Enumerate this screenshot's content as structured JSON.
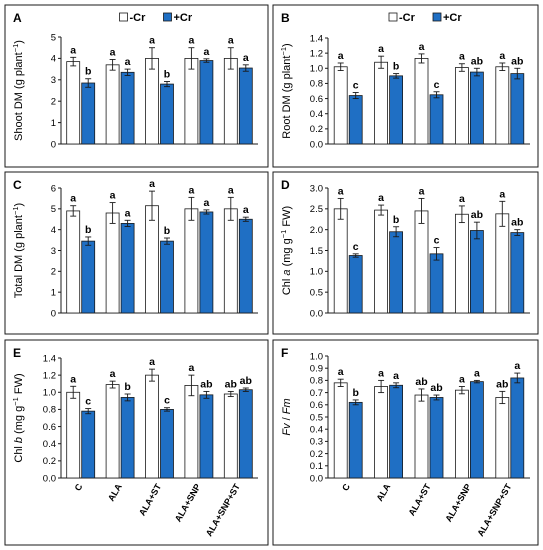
{
  "legend": {
    "series_labels": [
      "-Cr",
      "+Cr"
    ]
  },
  "colors": {
    "control": "#ffffff",
    "treated": "#1f6fc4",
    "frame": "#1a1a1a"
  },
  "chart_data": [
    {
      "id": "A",
      "type": "bar",
      "letter": "A",
      "ylabel_main": "Shoot DM (g plant",
      "ylabel_sup": "−1",
      "ylabel_end": ")",
      "ylim": [
        0,
        5
      ],
      "yticks": [
        "0",
        "1",
        "2",
        "3",
        "4",
        "5"
      ],
      "categories": [
        "C",
        "ALA",
        "ALA+ST",
        "ALA+SNP",
        "ALA+SNP+ST"
      ],
      "show_xlabels": false,
      "show_legend": true,
      "series": [
        {
          "name": "-Cr",
          "values": [
            3.85,
            3.7,
            4.0,
            4.0,
            4.0
          ],
          "errors": [
            0.2,
            0.25,
            0.5,
            0.5,
            0.5
          ],
          "letters": [
            "a",
            "a",
            "a",
            "a",
            "a"
          ]
        },
        {
          "name": "+Cr",
          "values": [
            2.85,
            3.35,
            2.8,
            3.9,
            3.55
          ],
          "errors": [
            0.2,
            0.15,
            0.12,
            0.08,
            0.15
          ],
          "letters": [
            "b",
            "a",
            "b",
            "a",
            "a"
          ]
        }
      ]
    },
    {
      "id": "B",
      "type": "bar",
      "letter": "B",
      "ylabel_main": "Root DM (g plant",
      "ylabel_sup": "−1",
      "ylabel_end": ")",
      "ylim": [
        0,
        1.4
      ],
      "yticks": [
        "0.0",
        "0.2",
        "0.4",
        "0.6",
        "0.8",
        "1.0",
        "1.2",
        "1.4"
      ],
      "categories": [
        "C",
        "ALA",
        "ALA+ST",
        "ALA+SNP",
        "ALA+SNP+ST"
      ],
      "show_xlabels": false,
      "show_legend": true,
      "series": [
        {
          "name": "-Cr",
          "values": [
            1.02,
            1.08,
            1.13,
            1.01,
            1.02
          ],
          "errors": [
            0.05,
            0.08,
            0.06,
            0.05,
            0.05
          ],
          "letters": [
            "a",
            "a",
            "a",
            "a",
            "a"
          ]
        },
        {
          "name": "+Cr",
          "values": [
            0.64,
            0.9,
            0.65,
            0.95,
            0.93
          ],
          "errors": [
            0.04,
            0.03,
            0.04,
            0.05,
            0.07
          ],
          "letters": [
            "c",
            "b",
            "c",
            "ab",
            "ab"
          ]
        }
      ]
    },
    {
      "id": "C",
      "type": "bar",
      "letter": "C",
      "ylabel_main": "Total DM (g plant",
      "ylabel_sup": "−1",
      "ylabel_end": ")",
      "ylim": [
        0,
        6
      ],
      "yticks": [
        "0",
        "1",
        "2",
        "3",
        "4",
        "5",
        "6"
      ],
      "categories": [
        "C",
        "ALA",
        "ALA+ST",
        "ALA+SNP",
        "ALA+SNP+ST"
      ],
      "show_xlabels": false,
      "show_legend": false,
      "series": [
        {
          "name": "-Cr",
          "values": [
            4.9,
            4.8,
            5.15,
            5.0,
            5.0
          ],
          "errors": [
            0.25,
            0.5,
            0.7,
            0.55,
            0.55
          ],
          "letters": [
            "a",
            "a",
            "a",
            "a",
            "a"
          ]
        },
        {
          "name": "+Cr",
          "values": [
            3.45,
            4.3,
            3.45,
            4.85,
            4.5
          ],
          "errors": [
            0.2,
            0.15,
            0.15,
            0.1,
            0.1
          ],
          "letters": [
            "b",
            "a",
            "b",
            "a",
            "a"
          ]
        }
      ]
    },
    {
      "id": "D",
      "type": "bar",
      "letter": "D",
      "ylabel_main": "Chl ",
      "ylabel_italic": "a",
      "ylabel_rest": " (mg g",
      "ylabel_sup": "−1",
      "ylabel_end": " FW)",
      "ylim": [
        0,
        3.0
      ],
      "yticks": [
        "0.0",
        "0.5",
        "1.0",
        "1.5",
        "2.0",
        "2.5",
        "3.0"
      ],
      "categories": [
        "C",
        "ALA",
        "ALA+ST",
        "ALA+SNP",
        "ALA+SNP+ST"
      ],
      "show_xlabels": false,
      "show_legend": false,
      "series": [
        {
          "name": "-Cr",
          "values": [
            2.5,
            2.47,
            2.45,
            2.37,
            2.38
          ],
          "errors": [
            0.25,
            0.12,
            0.3,
            0.2,
            0.3
          ],
          "letters": [
            "a",
            "a",
            "a",
            "a",
            "a"
          ]
        },
        {
          "name": "+Cr",
          "values": [
            1.38,
            1.95,
            1.42,
            1.98,
            1.93
          ],
          "errors": [
            0.04,
            0.12,
            0.15,
            0.2,
            0.07
          ],
          "letters": [
            "c",
            "b",
            "c",
            "ab",
            "ab"
          ]
        }
      ]
    },
    {
      "id": "E",
      "type": "bar",
      "letter": "E",
      "ylabel_main": "Chl ",
      "ylabel_italic": "b",
      "ylabel_rest": " (mg g",
      "ylabel_sup": "−1",
      "ylabel_end": " FW)",
      "ylim": [
        0,
        1.4
      ],
      "yticks": [
        "0.0",
        "0.2",
        "0.4",
        "0.6",
        "0.8",
        "1.0",
        "1.2",
        "1.4"
      ],
      "categories": [
        "C",
        "ALA",
        "ALA+ST",
        "ALA+SNP",
        "ALA+SNP+ST"
      ],
      "show_xlabels": true,
      "show_legend": false,
      "series": [
        {
          "name": "-Cr",
          "values": [
            1.0,
            1.09,
            1.2,
            1.08,
            0.98
          ],
          "errors": [
            0.07,
            0.04,
            0.07,
            0.12,
            0.03
          ],
          "letters": [
            "a",
            "a",
            "a",
            "a",
            "ab"
          ]
        },
        {
          "name": "+Cr",
          "values": [
            0.78,
            0.94,
            0.8,
            0.97,
            1.03
          ],
          "errors": [
            0.03,
            0.04,
            0.02,
            0.04,
            0.02
          ],
          "letters": [
            "c",
            "b",
            "c",
            "ab",
            "ab"
          ]
        }
      ]
    },
    {
      "id": "F",
      "type": "bar",
      "letter": "F",
      "ylabel_italic_full": "Fv / Fm",
      "ylim": [
        0,
        1.0
      ],
      "yticks": [
        "0.0",
        "0.1",
        "0.2",
        "0.3",
        "0.4",
        "0.5",
        "0.6",
        "0.7",
        "0.8",
        "0.9",
        "1.0"
      ],
      "categories": [
        "C",
        "ALA",
        "ALA+ST",
        "ALA+SNP",
        "ALA+SNP+ST"
      ],
      "show_xlabels": true,
      "show_legend": false,
      "series": [
        {
          "name": "-Cr",
          "values": [
            0.78,
            0.75,
            0.68,
            0.72,
            0.66
          ],
          "errors": [
            0.03,
            0.05,
            0.05,
            0.03,
            0.05
          ],
          "letters": [
            "a",
            "a",
            "ab",
            "a",
            "ab"
          ]
        },
        {
          "name": "+Cr",
          "values": [
            0.62,
            0.76,
            0.66,
            0.79,
            0.82
          ],
          "errors": [
            0.02,
            0.02,
            0.02,
            0.01,
            0.04
          ],
          "letters": [
            "b",
            "a",
            "ab",
            "a",
            "a"
          ]
        }
      ]
    }
  ]
}
